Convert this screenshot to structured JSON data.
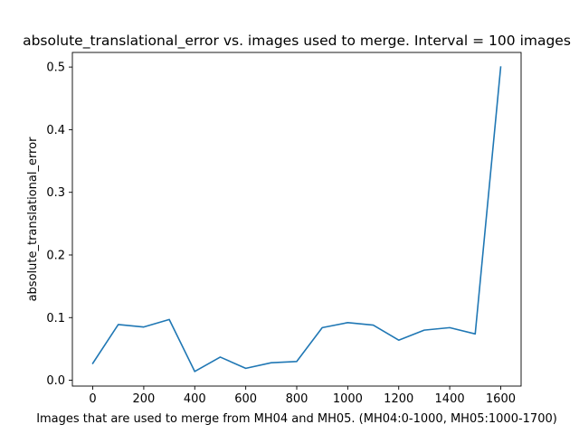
{
  "chart_data": {
    "type": "line",
    "title": "absolute_translational_error vs. images used to merge. Interval = 100 images",
    "xlabel": "Images that are used to merge from MH04 and MH05. (MH04:0-1000, MH05:1000-1700)",
    "ylabel": "absolute_translational_error",
    "xlim": [
      -80,
      1680
    ],
    "ylim": [
      -0.0093,
      0.5233
    ],
    "xticks": [
      0,
      200,
      400,
      600,
      800,
      1000,
      1200,
      1400,
      1600
    ],
    "yticks": [
      0.0,
      0.1,
      0.2,
      0.3,
      0.4,
      0.5
    ],
    "x": [
      0,
      100,
      200,
      300,
      400,
      500,
      600,
      700,
      800,
      900,
      1000,
      1100,
      1200,
      1300,
      1400,
      1500,
      1600
    ],
    "series": [
      {
        "color": "#1f77b4",
        "values": [
          0.027,
          0.089,
          0.085,
          0.097,
          0.014,
          0.037,
          0.019,
          0.028,
          0.03,
          0.084,
          0.092,
          0.088,
          0.064,
          0.08,
          0.084,
          0.074,
          0.5
        ]
      }
    ],
    "grid": false,
    "legend": "none"
  }
}
